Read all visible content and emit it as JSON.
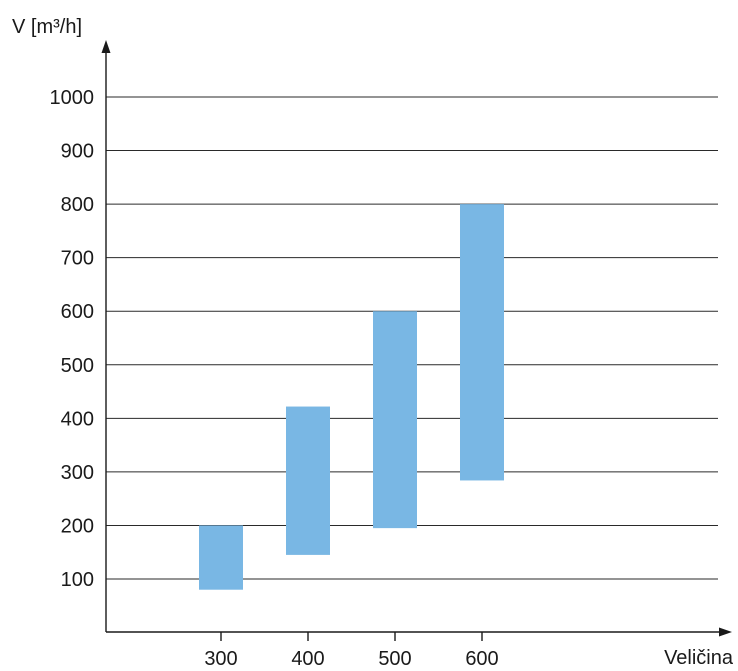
{
  "chart_data": {
    "type": "bar",
    "subtype": "floating-range",
    "categories": [
      "300",
      "400",
      "500",
      "600"
    ],
    "ranges": [
      {
        "category": "300",
        "low": 80,
        "high": 200
      },
      {
        "category": "400",
        "low": 145,
        "high": 422
      },
      {
        "category": "500",
        "low": 195,
        "high": 600
      },
      {
        "category": "600",
        "low": 284,
        "high": 800
      }
    ],
    "xlabel": "Veličina",
    "ylabel": "V [m³/h]",
    "yticks": [
      "100",
      "200",
      "300",
      "400",
      "500",
      "600",
      "700",
      "800",
      "900",
      "1000"
    ],
    "ylim": [
      0,
      1000
    ],
    "grid": true,
    "legend": "none",
    "colors": {
      "bar": "#79b7e4",
      "axis": "#1a1a1a",
      "grid": "#2a2a2a",
      "text": "#1a1a1a"
    }
  }
}
